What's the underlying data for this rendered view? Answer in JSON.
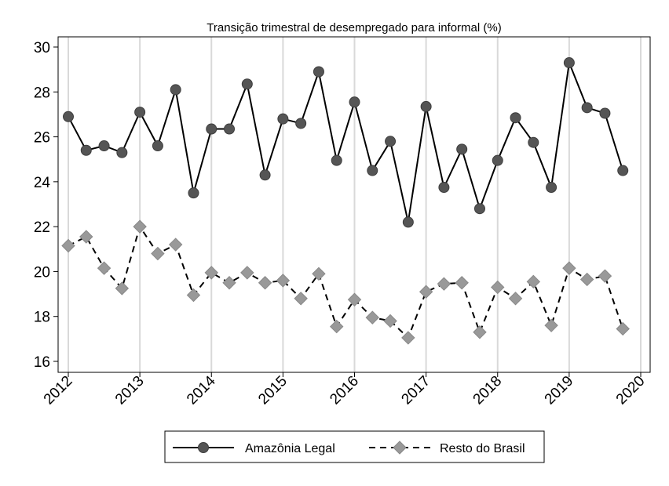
{
  "chart_data": {
    "type": "line",
    "title": "Transição trimestral de desempregado para informal (%)",
    "xlabel": "",
    "ylabel": "",
    "xlim": [
      2012,
      2020
    ],
    "ylim": [
      15.5,
      30.5
    ],
    "x_ticks": [
      2012,
      2013,
      2014,
      2015,
      2016,
      2017,
      2018,
      2019,
      2020
    ],
    "x_tick_labels": [
      "2012",
      "2013",
      "2014",
      "2015",
      "2016",
      "2017",
      "2018",
      "2019",
      "2020"
    ],
    "y_ticks": [
      16,
      18,
      20,
      22,
      24,
      26,
      28,
      30
    ],
    "y_tick_labels": [
      "16",
      "18",
      "20",
      "22",
      "24",
      "26",
      "28",
      "30"
    ],
    "grid": "vertical",
    "legend_position": "bottom",
    "x": [
      2012,
      2012.25,
      2012.5,
      2012.75,
      2013,
      2013.25,
      2013.5,
      2013.75,
      2014,
      2014.25,
      2014.5,
      2014.75,
      2015,
      2015.25,
      2015.5,
      2015.75,
      2016,
      2016.25,
      2016.5,
      2016.75,
      2017,
      2017.25,
      2017.5,
      2017.75,
      2018,
      2018.25,
      2018.5,
      2018.75,
      2019,
      2019.25,
      2019.5,
      2019.75
    ],
    "series": [
      {
        "name": "Amazônia Legal",
        "marker": "circle",
        "line_style": "solid",
        "color": "#555555",
        "values": [
          26.9,
          25.4,
          25.6,
          25.3,
          27.1,
          25.6,
          28.1,
          23.5,
          26.35,
          26.35,
          28.35,
          24.3,
          26.8,
          26.6,
          28.9,
          24.95,
          27.55,
          24.5,
          25.8,
          22.2,
          27.35,
          23.75,
          25.45,
          22.8,
          24.95,
          26.85,
          25.75,
          23.75,
          29.3,
          27.3,
          27.05,
          24.5
        ]
      },
      {
        "name": "Resto do Brasil",
        "marker": "diamond",
        "line_style": "dashed",
        "color": "#999999",
        "values": [
          21.15,
          21.55,
          20.15,
          19.25,
          22.0,
          20.8,
          21.2,
          18.95,
          19.95,
          19.5,
          19.95,
          19.5,
          19.6,
          18.8,
          19.9,
          17.55,
          18.75,
          17.95,
          17.8,
          17.05,
          19.1,
          19.45,
          19.5,
          17.3,
          19.3,
          18.8,
          19.55,
          17.6,
          20.15,
          19.65,
          19.8,
          17.45
        ]
      }
    ]
  }
}
